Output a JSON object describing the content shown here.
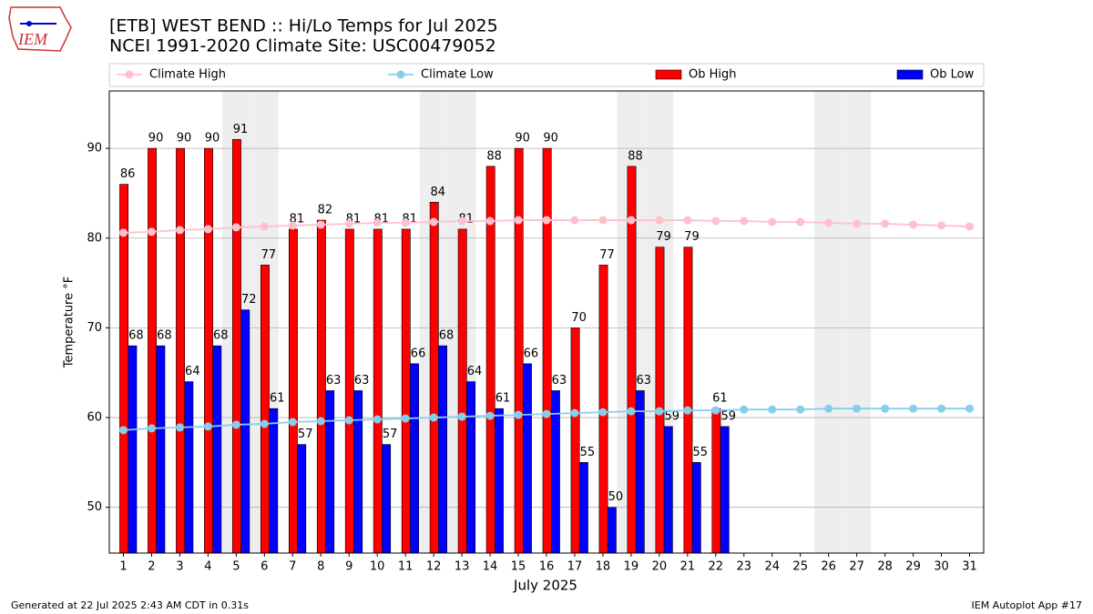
{
  "header": {
    "logo": "IEM"
  },
  "chart_data": {
    "type": "bar",
    "title": "[ETB] WEST BEND :: Hi/Lo Temps for Jul 2025",
    "subtitle": "NCEI 1991-2020 Climate Site: USC00479052",
    "xlabel": "July 2025",
    "ylabel": "Temperature °F",
    "x": [
      1,
      2,
      3,
      4,
      5,
      6,
      7,
      8,
      9,
      10,
      11,
      12,
      13,
      14,
      15,
      16,
      17,
      18,
      19,
      20,
      21,
      22,
      23,
      24,
      25,
      26,
      27,
      28,
      29,
      30,
      31
    ],
    "xlim": [
      0.5,
      31.5
    ],
    "xticks": [
      1,
      2,
      3,
      4,
      5,
      6,
      7,
      8,
      9,
      10,
      11,
      12,
      13,
      14,
      15,
      16,
      17,
      18,
      19,
      20,
      21,
      22,
      23,
      24,
      25,
      26,
      27,
      28,
      29,
      30,
      31
    ],
    "ylim": [
      44.9,
      96.4
    ],
    "yticks": [
      50,
      60,
      70,
      80,
      90
    ],
    "grid": true,
    "shaded_days": [
      5,
      6,
      12,
      13,
      19,
      20,
      26,
      27
    ],
    "shade_color": "#eeeeee",
    "series": [
      {
        "name": "Climate High",
        "kind": "line",
        "color": "#ffc0cb",
        "values": [
          80.6,
          80.7,
          80.9,
          81.0,
          81.2,
          81.3,
          81.4,
          81.5,
          81.6,
          81.7,
          81.7,
          81.8,
          81.9,
          81.9,
          82.0,
          82.0,
          82.0,
          82.0,
          82.0,
          82.0,
          82.0,
          81.9,
          81.9,
          81.8,
          81.8,
          81.7,
          81.6,
          81.6,
          81.5,
          81.4,
          81.3
        ]
      },
      {
        "name": "Climate Low",
        "kind": "line",
        "color": "#87ceeb",
        "values": [
          58.6,
          58.8,
          58.9,
          59.0,
          59.2,
          59.3,
          59.5,
          59.6,
          59.7,
          59.8,
          59.9,
          60.0,
          60.1,
          60.2,
          60.3,
          60.4,
          60.5,
          60.6,
          60.7,
          60.7,
          60.8,
          60.8,
          60.9,
          60.9,
          60.9,
          61.0,
          61.0,
          61.0,
          61.0,
          61.0,
          61.0
        ]
      },
      {
        "name": "Ob High",
        "kind": "bar",
        "color": "#ff0000",
        "values": [
          86,
          90,
          90,
          90,
          91,
          77,
          81,
          82,
          81,
          81,
          81,
          84,
          81,
          88,
          90,
          90,
          70,
          77,
          88,
          79,
          79,
          61,
          null,
          null,
          null,
          null,
          null,
          null,
          null,
          null,
          null
        ]
      },
      {
        "name": "Ob Low",
        "kind": "bar",
        "color": "#0000ff",
        "values": [
          68,
          68,
          64,
          68,
          72,
          61,
          57,
          63,
          63,
          57,
          66,
          68,
          64,
          61,
          66,
          63,
          55,
          50,
          63,
          59,
          55,
          59,
          null,
          null,
          null,
          null,
          null,
          null,
          null,
          null,
          null
        ]
      }
    ],
    "footer_left": "Generated at 22 Jul 2025 2:43 AM CDT in 0.31s",
    "footer_right": "IEM Autoplot App #17"
  }
}
